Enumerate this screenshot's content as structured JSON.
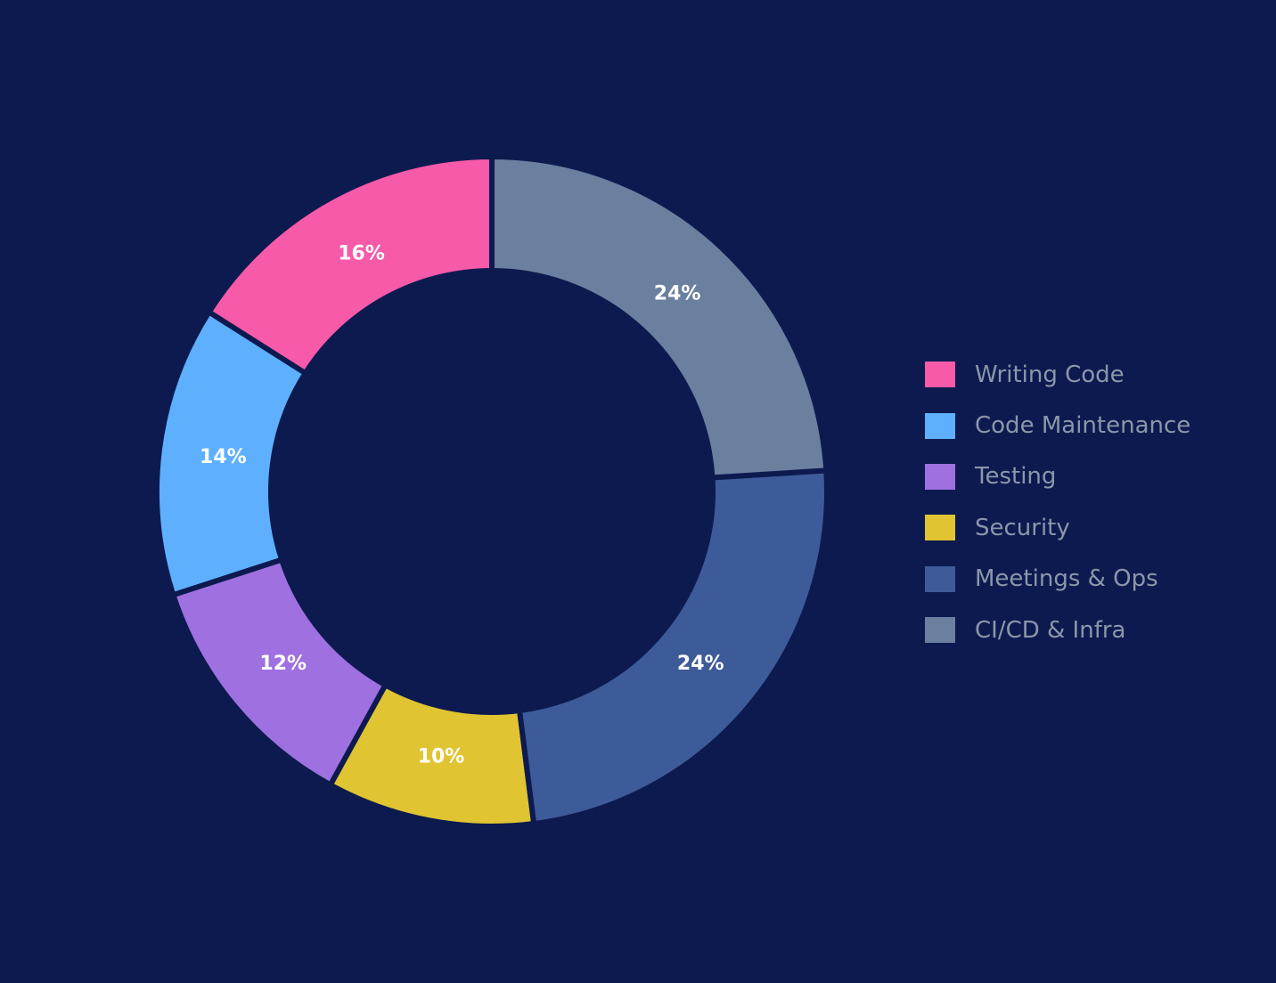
{
  "chart_data": {
    "type": "pie",
    "subtype": "donut",
    "title": "",
    "start_angle_deg": 90,
    "direction": "counterclockwise",
    "categories": [
      "Writing Code",
      "Code Maintenance",
      "Testing",
      "Security",
      "Meetings & Ops",
      "CI/CD & Infra"
    ],
    "values": [
      16,
      14,
      12,
      10,
      24,
      24
    ],
    "labels": [
      "16%",
      "14%",
      "12%",
      "10%",
      "24%",
      "24%"
    ],
    "colors": [
      "#f75aa9",
      "#5eb0ff",
      "#9f70e0",
      "#e0c431",
      "#3d5b98",
      "#6b7f9f"
    ],
    "legend_position": "right"
  },
  "background": "#0d1a4f"
}
